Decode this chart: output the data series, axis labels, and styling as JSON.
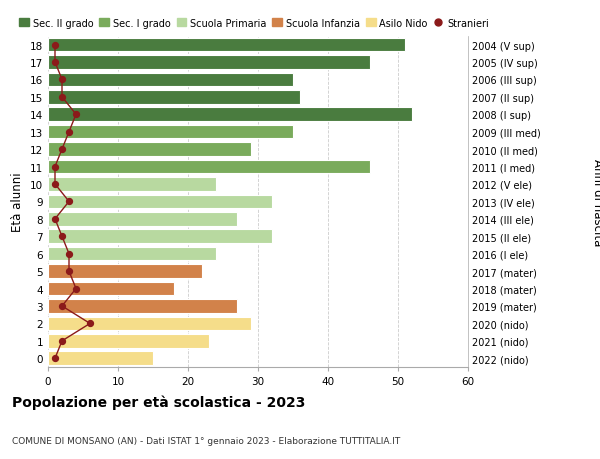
{
  "ages": [
    18,
    17,
    16,
    15,
    14,
    13,
    12,
    11,
    10,
    9,
    8,
    7,
    6,
    5,
    4,
    3,
    2,
    1,
    0
  ],
  "anni_nascita": [
    "2004 (V sup)",
    "2005 (IV sup)",
    "2006 (III sup)",
    "2007 (II sup)",
    "2008 (I sup)",
    "2009 (III med)",
    "2010 (II med)",
    "2011 (I med)",
    "2012 (V ele)",
    "2013 (IV ele)",
    "2014 (III ele)",
    "2015 (II ele)",
    "2016 (I ele)",
    "2017 (mater)",
    "2018 (mater)",
    "2019 (mater)",
    "2020 (nido)",
    "2021 (nido)",
    "2022 (nido)"
  ],
  "bar_values": [
    51,
    46,
    35,
    36,
    52,
    35,
    29,
    46,
    24,
    32,
    27,
    32,
    24,
    22,
    18,
    27,
    29,
    23,
    15
  ],
  "bar_colors": [
    "#4a7c3f",
    "#4a7c3f",
    "#4a7c3f",
    "#4a7c3f",
    "#4a7c3f",
    "#7aab5c",
    "#7aab5c",
    "#7aab5c",
    "#b8d9a0",
    "#b8d9a0",
    "#b8d9a0",
    "#b8d9a0",
    "#b8d9a0",
    "#d2824a",
    "#d2824a",
    "#d2824a",
    "#f5dd8a",
    "#f5dd8a",
    "#f5dd8a"
  ],
  "stranieri_values": [
    1,
    1,
    2,
    2,
    4,
    3,
    2,
    1,
    1,
    3,
    1,
    2,
    3,
    3,
    4,
    2,
    6,
    2,
    1
  ],
  "stranieri_color": "#8b1a1a",
  "legend_labels": [
    "Sec. II grado",
    "Sec. I grado",
    "Scuola Primaria",
    "Scuola Infanzia",
    "Asilo Nido",
    "Stranieri"
  ],
  "legend_colors": [
    "#4a7c3f",
    "#7aab5c",
    "#b8d9a0",
    "#d2824a",
    "#f5dd8a",
    "#8b1a1a"
  ],
  "title": "Popolazione per età scolastica - 2023",
  "subtitle": "COMUNE DI MONSANO (AN) - Dati ISTAT 1° gennaio 2023 - Elaborazione TUTTITALIA.IT",
  "ylabel_left": "Età alunni",
  "ylabel_right": "Anni di nascita",
  "xlim": [
    0,
    60
  ],
  "background_color": "#ffffff",
  "grid_color": "#cccccc"
}
